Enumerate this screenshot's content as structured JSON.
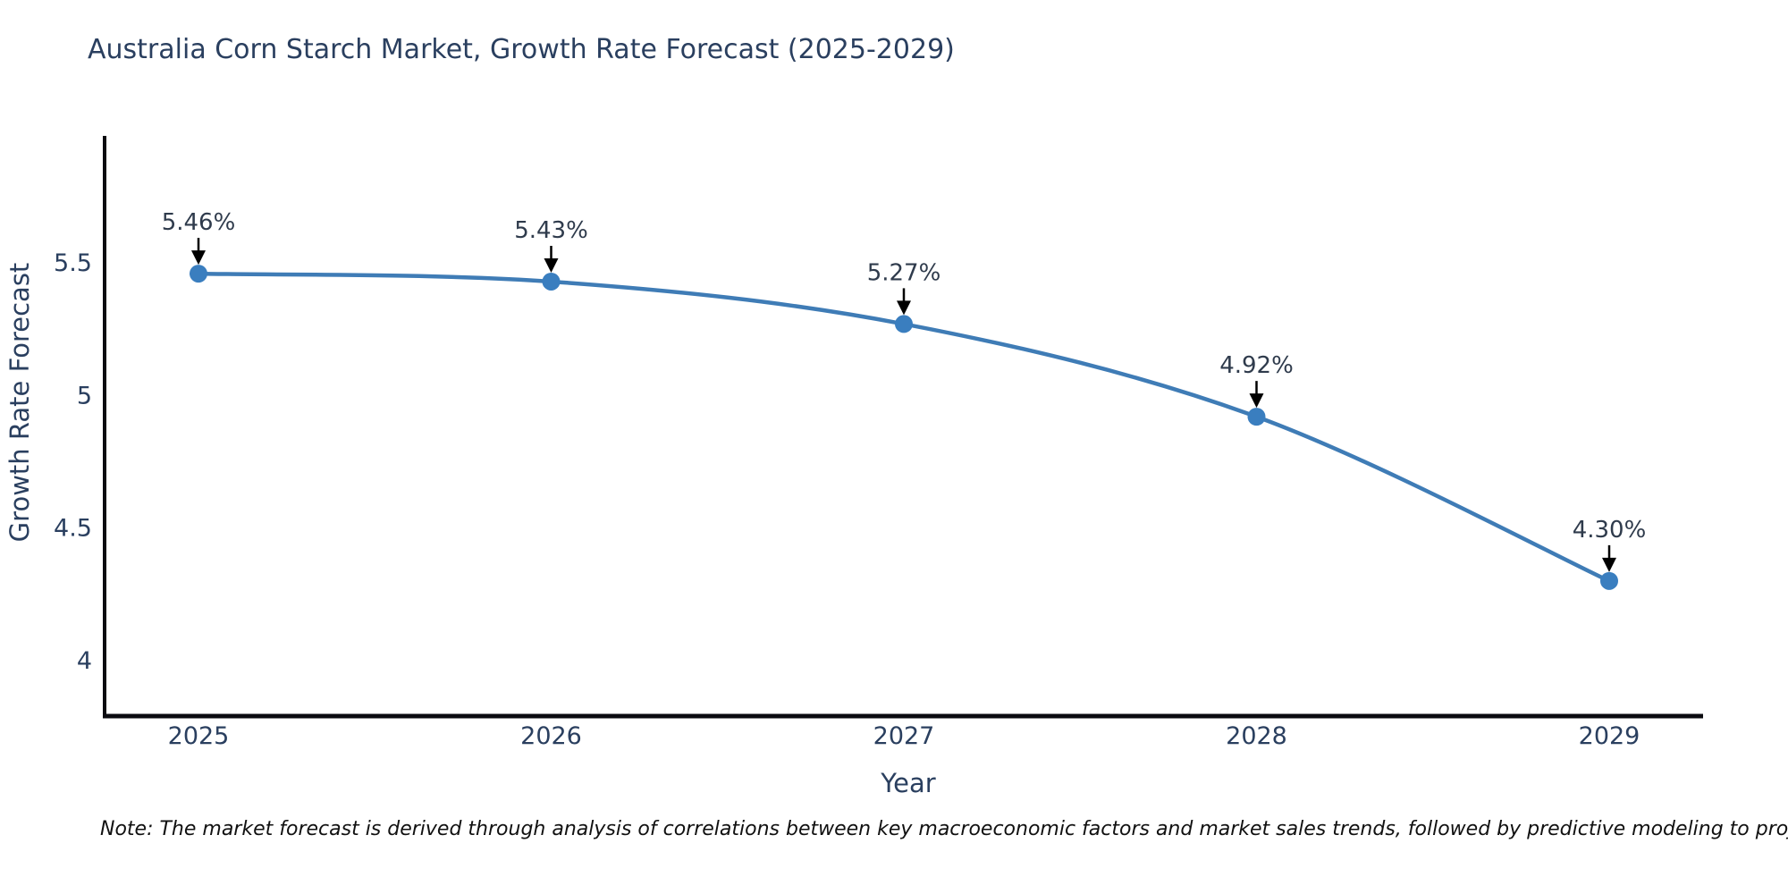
{
  "title": "Australia Corn Starch Market, Growth Rate Forecast (2025-2029)",
  "note": "Note: The market forecast is derived through analysis of correlations between key macroeconomic factors and market sales trends, followed by predictive modeling to project future sales",
  "chart_data": {
    "type": "line",
    "line_shape": "spline",
    "x": [
      2025,
      2026,
      2027,
      2028,
      2029
    ],
    "xtick_labels": [
      "2025",
      "2026",
      "2027",
      "2028",
      "2029"
    ],
    "series": [
      {
        "name": "Growth Rate Forecast",
        "values": [
          5.46,
          5.43,
          5.27,
          4.92,
          4.3
        ]
      }
    ],
    "point_labels": [
      "5.46%",
      "5.43%",
      "5.27%",
      "4.92%",
      "4.30%"
    ],
    "title": "Australia Corn Starch Market, Growth Rate Forecast (2025-2029)",
    "xlabel": "Year",
    "ylabel": "Growth Rate Forecast",
    "yticks": [
      4,
      4.5,
      5,
      5.5
    ],
    "ytick_labels": [
      "4",
      "4.5",
      "5",
      "5.5"
    ],
    "ylim": [
      3.79,
      5.98
    ],
    "grid": false,
    "legend": "none",
    "annotations_have_arrows": true,
    "colors": {
      "line": "#3f7cb6",
      "marker": "#3a7ebf",
      "axis_line": "#0b0b10",
      "tick_text": "#2a3f5f",
      "axis_title_text": "#2a3f5f",
      "title_text": "#2a3f5f",
      "annotation_text": "#2f3b4c",
      "arrow": "#000000",
      "background": "#ffffff"
    }
  }
}
